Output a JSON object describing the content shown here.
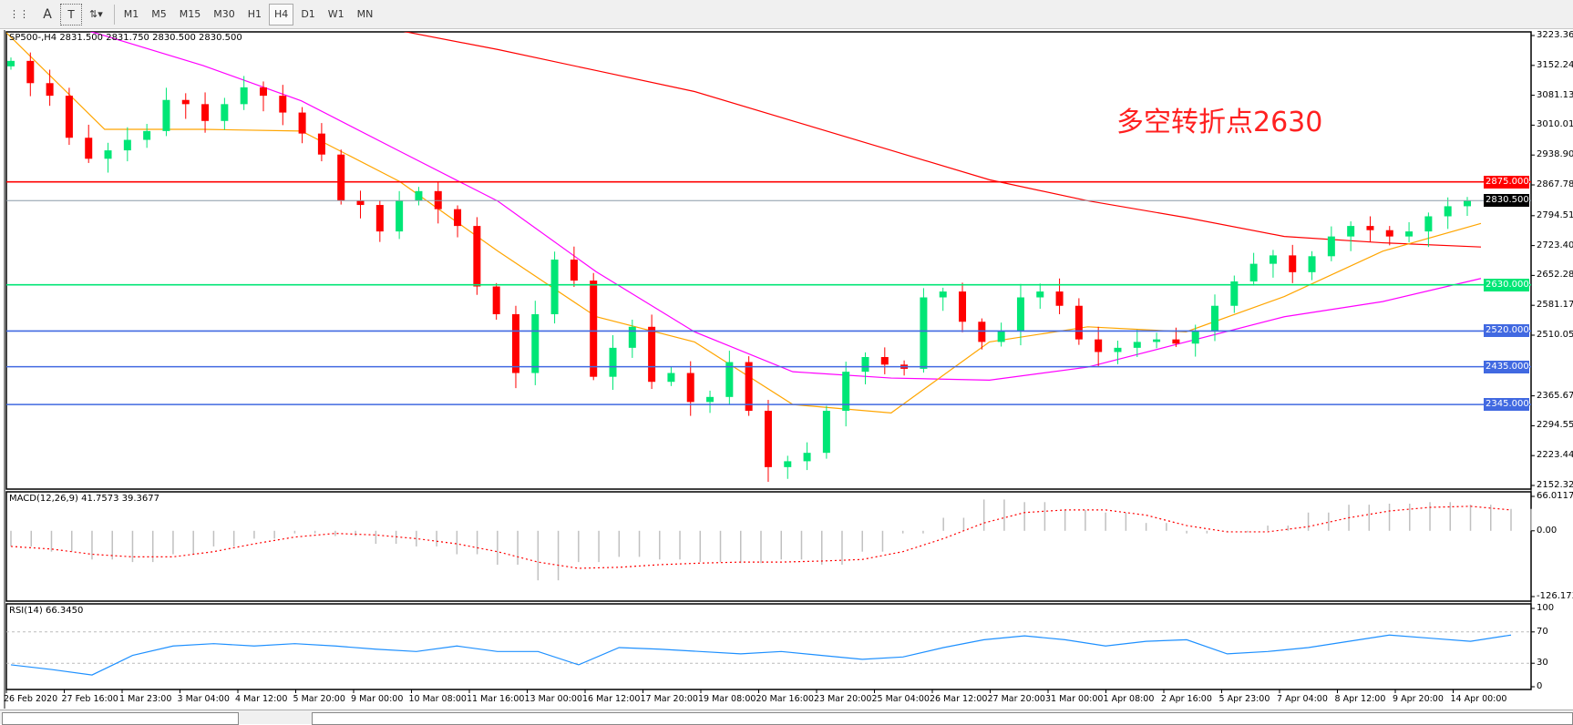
{
  "toolbar": {
    "items": [
      {
        "name": "grid-lines-icon",
        "label": "⋮⋮"
      },
      {
        "name": "text-icon",
        "label": "A"
      },
      {
        "name": "text-label-icon",
        "label": "T"
      },
      {
        "name": "arrows-icon",
        "label": "⇅▾"
      }
    ],
    "timeframes": [
      "M1",
      "M5",
      "M15",
      "M30",
      "H1",
      "H4",
      "D1",
      "W1",
      "MN"
    ],
    "active": "H4"
  },
  "chart": {
    "header": "SP500-,H4  2831.500 2831.750 2830.500 2830.500",
    "annotation": "多空转折点2630",
    "price_ticks": [
      "3223.360",
      "3152.245",
      "3081.130",
      "3010.015",
      "2938.900",
      "2867.785",
      "2794.515",
      "2723.400",
      "2652.285",
      "2581.170",
      "2510.055",
      "2365.670",
      "2294.555",
      "2223.440",
      "2152.325"
    ],
    "price_tick_values": [
      3223.36,
      3152.245,
      3081.13,
      3010.015,
      2938.9,
      2867.785,
      2794.515,
      2723.4,
      2652.285,
      2581.17,
      2510.055,
      2365.67,
      2294.555,
      2223.44,
      2152.325
    ],
    "ylim": [
      2152.325,
      3223.36
    ],
    "levels": [
      {
        "value": 2875,
        "label": "2875.000",
        "color": "#ff0000"
      },
      {
        "value": 2830.5,
        "label": "2830.500",
        "color": "#000000",
        "line": "#8a9aa8"
      },
      {
        "value": 2630,
        "label": "2630.000",
        "color": "#00e676"
      },
      {
        "value": 2520,
        "label": "2520.000",
        "color": "#4169e1"
      },
      {
        "value": 2435,
        "label": "2435.000",
        "color": "#4169e1"
      },
      {
        "value": 2345,
        "label": "2345.000",
        "color": "#4169e1"
      }
    ],
    "colors": {
      "bull": "#00e676",
      "bear": "#ff0000",
      "ma_fast": "#ffa500",
      "ma_mid": "#ff00ff",
      "ma_slow": "#ff0000"
    },
    "open_first": 3150,
    "closes": [
      3163,
      3110,
      3080,
      2980,
      2930,
      2950,
      2975,
      2996,
      3070,
      3060,
      3020,
      3060,
      3100,
      3080,
      3040,
      2990,
      2940,
      2830,
      2820,
      2757,
      2830,
      2853,
      2810,
      2770,
      2626,
      2560,
      2420,
      2560,
      2690,
      2640,
      2411,
      2480,
      2530,
      2399,
      2420,
      2351,
      2363,
      2446,
      2330,
      2196,
      2210,
      2230,
      2330,
      2423,
      2458,
      2440,
      2430,
      2600,
      2614,
      2542,
      2494,
      2520,
      2600,
      2614,
      2580,
      2500,
      2470,
      2480,
      2494,
      2500,
      2490,
      2520,
      2580,
      2638,
      2680,
      2700,
      2660,
      2698,
      2745,
      2770,
      2760,
      2745,
      2757,
      2793,
      2817,
      2831
    ],
    "ma_fast": [
      3230,
      3000,
      3000,
      2996,
      2876,
      2710,
      2554,
      2494,
      2345,
      2325,
      2494,
      2530,
      2518,
      2602,
      2710,
      2776
    ],
    "ma_mid": [
      3290,
      3223,
      3152,
      3068,
      2948,
      2829,
      2661,
      2518,
      2423,
      2408,
      2403,
      2434,
      2494,
      2554,
      2590,
      2645
    ],
    "ma_slow": [
      3400,
      3370,
      3340,
      3300,
      3235,
      3190,
      3140,
      3090,
      3020,
      2950,
      2880,
      2830,
      2790,
      2745,
      2730,
      2720
    ]
  },
  "macd": {
    "label": "MACD(12,26,9) 41.7573 39.3677",
    "ticks": [
      "66.0117",
      "0.00",
      "-126.173"
    ],
    "ylim": [
      -126.173,
      66.0117
    ],
    "histogram": [
      -30,
      -40,
      -55,
      -60,
      -45,
      -30,
      -15,
      -5,
      -10,
      -25,
      -30,
      -45,
      -65,
      -95,
      -60,
      -50,
      -55,
      -60,
      -62,
      -55,
      -65,
      -40,
      -5,
      25,
      60,
      55,
      40,
      35,
      15,
      -5,
      -3,
      10,
      35,
      50,
      52,
      55,
      50,
      42
    ],
    "signal": [
      -30,
      -35,
      -45,
      -50,
      -50,
      -40,
      -25,
      -12,
      -5,
      -8,
      -15,
      -25,
      -40,
      -60,
      -72,
      -70,
      -65,
      -62,
      -60,
      -60,
      -58,
      -55,
      -40,
      -15,
      15,
      35,
      40,
      40,
      30,
      10,
      -2,
      -2,
      8,
      25,
      38,
      45,
      47,
      40
    ]
  },
  "rsi": {
    "label": "RSI(14) 66.3450",
    "ticks": [
      "100",
      "70",
      "30",
      "0"
    ],
    "levels": [
      70,
      30
    ],
    "values": [
      28,
      22,
      15,
      40,
      52,
      55,
      52,
      55,
      52,
      48,
      45,
      52,
      45,
      45,
      28,
      50,
      48,
      45,
      42,
      45,
      40,
      35,
      38,
      50,
      60,
      65,
      60,
      52,
      58,
      60,
      42,
      45,
      50,
      58,
      66,
      62,
      58,
      66
    ]
  },
  "time_axis": [
    "26 Feb 2020",
    "27 Feb 16:00",
    "1 Mar 23:00",
    "3 Mar 04:00",
    "4 Mar 12:00",
    "5 Mar 20:00",
    "9 Mar 00:00",
    "10 Mar 08:00",
    "11 Mar 16:00",
    "13 Mar 00:00",
    "16 Mar 12:00",
    "17 Mar 20:00",
    "19 Mar 08:00",
    "20 Mar 16:00",
    "23 Mar 20:00",
    "25 Mar 04:00",
    "26 Mar 12:00",
    "27 Mar 20:00",
    "31 Mar 00:00",
    "1 Apr 08:00",
    "2 Apr 16:00",
    "5 Apr 23:00",
    "7 Apr 04:00",
    "8 Apr 12:00",
    "9 Apr 20:00",
    "14 Apr 00:00"
  ]
}
